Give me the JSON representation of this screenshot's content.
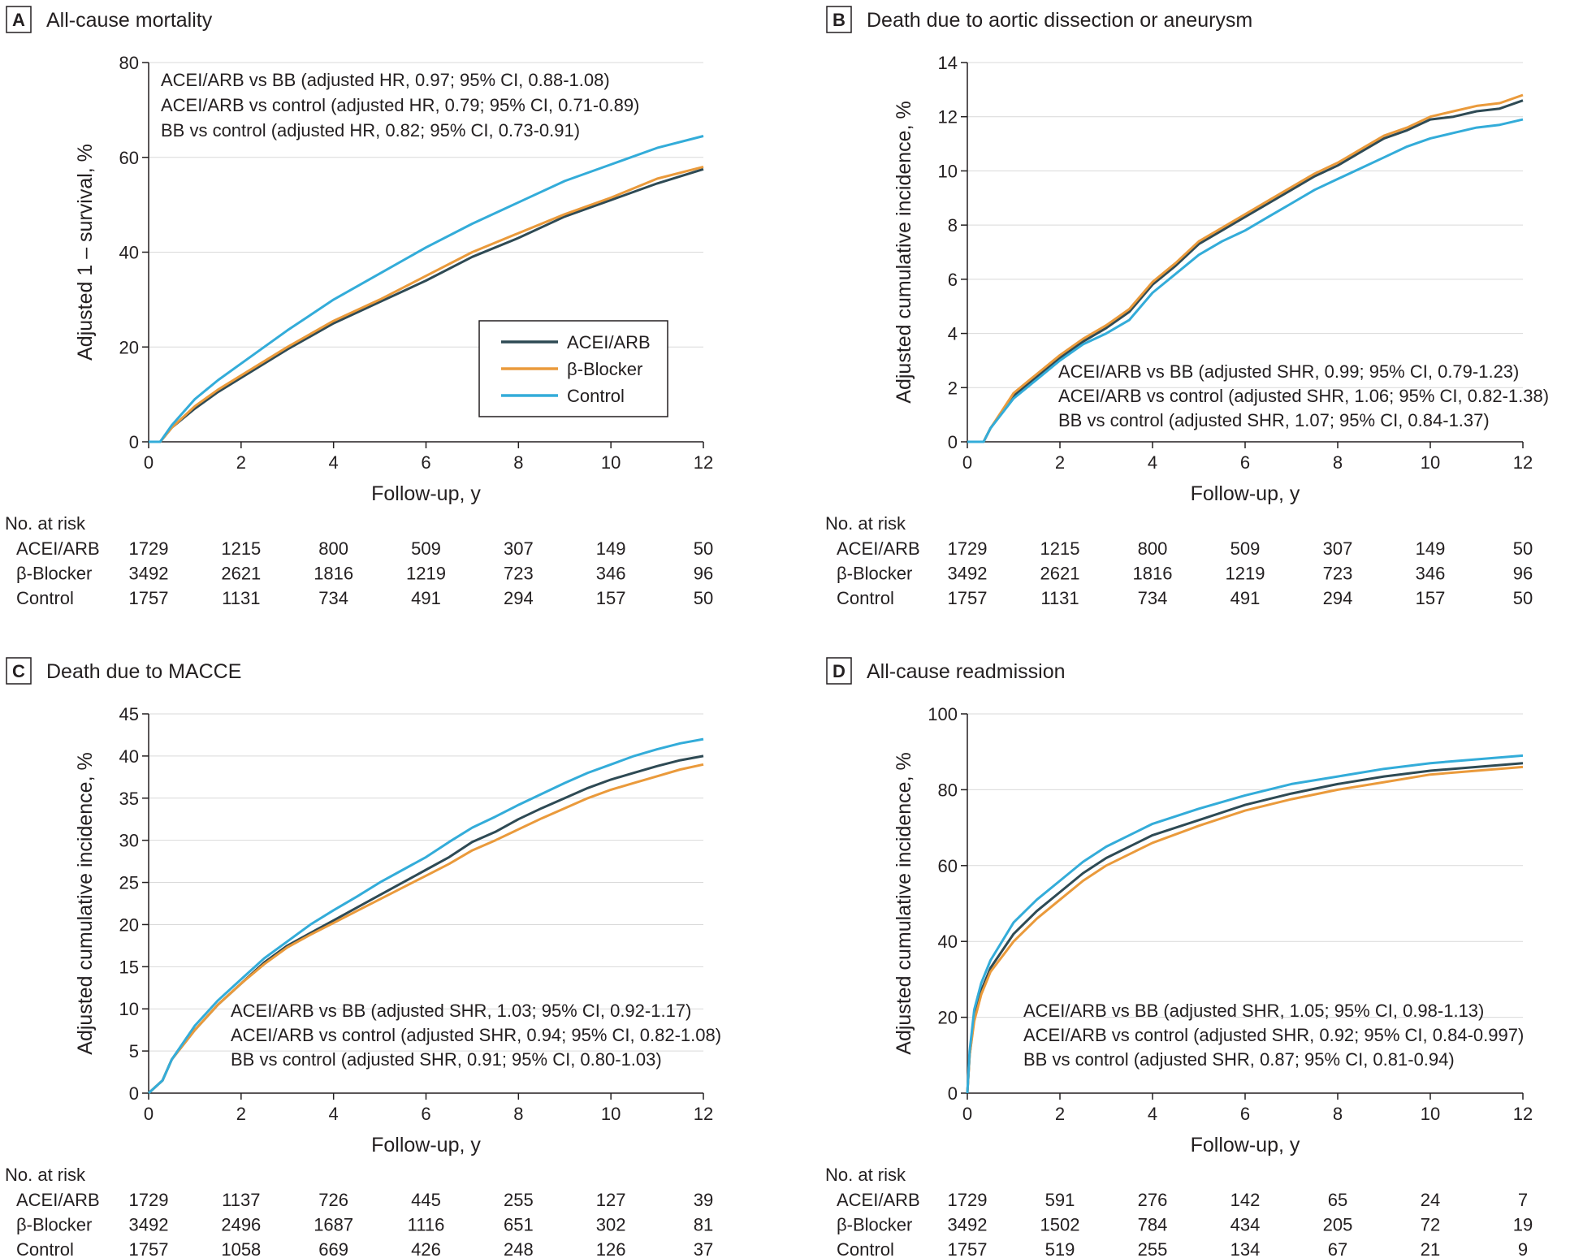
{
  "legend": {
    "items": [
      {
        "label": "ACEI/ARB",
        "color": "#2e4a54"
      },
      {
        "label": "β-Blocker",
        "color": "#ea9a3b"
      },
      {
        "label": "Control",
        "color": "#33acd9"
      }
    ]
  },
  "risk_header": "No. at risk",
  "chart_data": [
    {
      "panel": "A",
      "title": "All-cause mortality",
      "type": "line",
      "xlabel": "Follow-up, y",
      "ylabel": "Adjusted 1 – survival, %",
      "xlim": [
        0,
        12
      ],
      "ylim": [
        0,
        80
      ],
      "xticks": [
        0,
        2,
        4,
        6,
        8,
        10,
        12
      ],
      "yticks": [
        0,
        20,
        40,
        60,
        80
      ],
      "legend_position": "center-right",
      "annotations": [
        "ACEI/ARB vs BB (adjusted HR, 0.97; 95% CI, 0.88-1.08)",
        "ACEI/ARB vs control (adjusted HR, 0.79; 95% CI, 0.71-0.89)",
        "BB vs control (adjusted HR, 0.82; 95% CI, 0.73-0.91)"
      ],
      "series": [
        {
          "name": "ACEI/ARB",
          "color": "#2e4a54",
          "x": [
            0,
            0.25,
            0.5,
            1,
            1.5,
            2,
            3,
            4,
            5,
            6,
            7,
            8,
            9,
            10,
            11,
            12
          ],
          "y": [
            0,
            0,
            3,
            7,
            10.5,
            13.5,
            19.5,
            25,
            29.5,
            34,
            39,
            43,
            47.5,
            51,
            54.5,
            57.5
          ]
        },
        {
          "name": "β-Blocker",
          "color": "#ea9a3b",
          "x": [
            0,
            0.25,
            0.5,
            1,
            1.5,
            2,
            3,
            4,
            5,
            6,
            7,
            8,
            9,
            10,
            11,
            12
          ],
          "y": [
            0,
            0,
            3,
            7.5,
            11,
            14,
            20,
            25.5,
            30,
            35,
            40,
            44,
            48,
            51.5,
            55.5,
            58
          ]
        },
        {
          "name": "Control",
          "color": "#33acd9",
          "x": [
            0,
            0.25,
            0.5,
            1,
            1.5,
            2,
            3,
            4,
            5,
            6,
            7,
            8,
            9,
            10,
            11,
            12
          ],
          "y": [
            0,
            0,
            3.5,
            9,
            13,
            16.5,
            23.5,
            30,
            35.5,
            41,
            46,
            50.5,
            55,
            58.5,
            62,
            64.5
          ]
        }
      ],
      "risk_rows": [
        {
          "label": "ACEI/ARB",
          "values": [
            1729,
            1215,
            800,
            509,
            307,
            149,
            50
          ]
        },
        {
          "label": "β-Blocker",
          "values": [
            3492,
            2621,
            1816,
            1219,
            723,
            346,
            96
          ]
        },
        {
          "label": "Control",
          "values": [
            1757,
            1131,
            734,
            491,
            294,
            157,
            50
          ]
        }
      ]
    },
    {
      "panel": "B",
      "title": "Death due to aortic dissection or aneurysm",
      "type": "line",
      "xlabel": "Follow-up, y",
      "ylabel": "Adjusted cumulative incidence, %",
      "xlim": [
        0,
        12
      ],
      "ylim": [
        0,
        14
      ],
      "xticks": [
        0,
        2,
        4,
        6,
        8,
        10,
        12
      ],
      "yticks": [
        0,
        2,
        4,
        6,
        8,
        10,
        12,
        14
      ],
      "annotations": [
        "ACEI/ARB vs BB (adjusted SHR, 0.99; 95% CI, 0.79-1.23)",
        "ACEI/ARB vs control (adjusted SHR, 1.06; 95% CI, 0.82-1.38)",
        "BB vs control (adjusted SHR, 1.07; 95% CI, 0.84-1.37)"
      ],
      "series": [
        {
          "name": "ACEI/ARB",
          "color": "#2e4a54",
          "x": [
            0,
            0.35,
            0.5,
            1,
            1.5,
            2,
            2.5,
            3,
            3.5,
            4,
            4.5,
            5,
            5.5,
            6,
            6.5,
            7,
            7.5,
            8,
            8.5,
            9,
            9.5,
            10,
            10.5,
            11,
            11.5,
            12
          ],
          "y": [
            0,
            0,
            0.5,
            1.7,
            2.4,
            3.1,
            3.7,
            4.2,
            4.8,
            5.8,
            6.5,
            7.3,
            7.8,
            8.3,
            8.8,
            9.3,
            9.8,
            10.2,
            10.7,
            11.2,
            11.5,
            11.9,
            12.0,
            12.2,
            12.3,
            12.6
          ]
        },
        {
          "name": "β-Blocker",
          "color": "#ea9a3b",
          "x": [
            0,
            0.35,
            0.5,
            1,
            1.5,
            2,
            2.5,
            3,
            3.5,
            4,
            4.5,
            5,
            5.5,
            6,
            6.5,
            7,
            7.5,
            8,
            8.5,
            9,
            9.5,
            10,
            10.5,
            11,
            11.5,
            12
          ],
          "y": [
            0,
            0,
            0.5,
            1.8,
            2.5,
            3.2,
            3.8,
            4.3,
            4.9,
            5.9,
            6.6,
            7.4,
            7.9,
            8.4,
            8.9,
            9.4,
            9.9,
            10.3,
            10.8,
            11.3,
            11.6,
            12.0,
            12.2,
            12.4,
            12.5,
            12.8
          ]
        },
        {
          "name": "Control",
          "color": "#33acd9",
          "x": [
            0,
            0.35,
            0.5,
            1,
            1.5,
            2,
            2.5,
            3,
            3.5,
            4,
            4.5,
            5,
            5.5,
            6,
            6.5,
            7,
            7.5,
            8,
            8.5,
            9,
            9.5,
            10,
            10.5,
            11,
            11.5,
            12
          ],
          "y": [
            0,
            0,
            0.5,
            1.6,
            2.3,
            3.0,
            3.6,
            4.0,
            4.5,
            5.5,
            6.2,
            6.9,
            7.4,
            7.8,
            8.3,
            8.8,
            9.3,
            9.7,
            10.1,
            10.5,
            10.9,
            11.2,
            11.4,
            11.6,
            11.7,
            11.9
          ]
        }
      ],
      "risk_rows": [
        {
          "label": "ACEI/ARB",
          "values": [
            1729,
            1215,
            800,
            509,
            307,
            149,
            50
          ]
        },
        {
          "label": "β-Blocker",
          "values": [
            3492,
            2621,
            1816,
            1219,
            723,
            346,
            96
          ]
        },
        {
          "label": "Control",
          "values": [
            1757,
            1131,
            734,
            491,
            294,
            157,
            50
          ]
        }
      ]
    },
    {
      "panel": "C",
      "title": "Death due to MACCE",
      "type": "line",
      "xlabel": "Follow-up, y",
      "ylabel": "Adjusted cumulative incidence, %",
      "xlim": [
        0,
        12
      ],
      "ylim": [
        0,
        45
      ],
      "xticks": [
        0,
        2,
        4,
        6,
        8,
        10,
        12
      ],
      "yticks": [
        0,
        5,
        10,
        15,
        20,
        25,
        30,
        35,
        40,
        45
      ],
      "annotations": [
        "ACEI/ARB vs BB (adjusted SHR, 1.03; 95% CI, 0.92-1.17)",
        "ACEI/ARB vs control (adjusted SHR, 0.94; 95% CI, 0.82-1.08)",
        "BB vs control (adjusted SHR, 0.91; 95% CI, 0.80-1.03)"
      ],
      "series": [
        {
          "name": "ACEI/ARB",
          "color": "#2e4a54",
          "x": [
            0,
            0.3,
            0.5,
            1,
            1.5,
            2,
            2.5,
            3,
            3.5,
            4,
            4.5,
            5,
            5.5,
            6,
            6.5,
            7,
            7.5,
            8,
            8.5,
            9,
            9.5,
            10,
            10.5,
            11,
            11.5,
            12
          ],
          "y": [
            0,
            1.5,
            4,
            7.5,
            10.5,
            13,
            15.5,
            17.5,
            19,
            20.5,
            22,
            23.5,
            25,
            26.5,
            28,
            29.8,
            31,
            32.5,
            33.8,
            35,
            36.2,
            37.2,
            38,
            38.8,
            39.5,
            40
          ]
        },
        {
          "name": "β-Blocker",
          "color": "#ea9a3b",
          "x": [
            0,
            0.3,
            0.5,
            1,
            1.5,
            2,
            2.5,
            3,
            3.5,
            4,
            4.5,
            5,
            5.5,
            6,
            6.5,
            7,
            7.5,
            8,
            8.5,
            9,
            9.5,
            10,
            10.5,
            11,
            11.5,
            12
          ],
          "y": [
            0,
            1.5,
            4,
            7.5,
            10.5,
            13,
            15.3,
            17.3,
            18.8,
            20.2,
            21.6,
            23,
            24.4,
            25.8,
            27.2,
            28.8,
            30,
            31.3,
            32.6,
            33.8,
            35,
            36,
            36.8,
            37.6,
            38.4,
            39
          ]
        },
        {
          "name": "Control",
          "color": "#33acd9",
          "x": [
            0,
            0.3,
            0.5,
            1,
            1.5,
            2,
            2.5,
            3,
            3.5,
            4,
            4.5,
            5,
            5.5,
            6,
            6.5,
            7,
            7.5,
            8,
            8.5,
            9,
            9.5,
            10,
            10.5,
            11,
            11.5,
            12
          ],
          "y": [
            0,
            1.5,
            4,
            8,
            11,
            13.5,
            16,
            18,
            20,
            21.7,
            23.3,
            25,
            26.5,
            28,
            29.8,
            31.5,
            32.8,
            34.2,
            35.5,
            36.8,
            38,
            39,
            40,
            40.8,
            41.5,
            42
          ]
        }
      ],
      "risk_rows": [
        {
          "label": "ACEI/ARB",
          "values": [
            1729,
            1137,
            726,
            445,
            255,
            127,
            39
          ]
        },
        {
          "label": "β-Blocker",
          "values": [
            3492,
            2496,
            1687,
            1116,
            651,
            302,
            81
          ]
        },
        {
          "label": "Control",
          "values": [
            1757,
            1058,
            669,
            426,
            248,
            126,
            37
          ]
        }
      ]
    },
    {
      "panel": "D",
      "title": "All-cause readmission",
      "type": "line",
      "xlabel": "Follow-up, y",
      "ylabel": "Adjusted cumulative incidence, %",
      "xlim": [
        0,
        12
      ],
      "ylim": [
        0,
        100
      ],
      "xticks": [
        0,
        2,
        4,
        6,
        8,
        10,
        12
      ],
      "yticks": [
        0,
        20,
        40,
        60,
        80,
        100
      ],
      "annotations": [
        "ACEI/ARB vs BB (adjusted SHR, 1.05; 95% CI, 0.98-1.13)",
        "ACEI/ARB vs control (adjusted SHR, 0.92; 95% CI, 0.84-0.997)",
        "BB vs control (adjusted SHR, 0.87; 95% CI, 0.81-0.94)"
      ],
      "series": [
        {
          "name": "ACEI/ARB",
          "color": "#2e4a54",
          "x": [
            0,
            0.05,
            0.15,
            0.3,
            0.5,
            1,
            1.5,
            2,
            2.5,
            3,
            4,
            5,
            6,
            7,
            8,
            9,
            10,
            11,
            12
          ],
          "y": [
            0,
            10,
            20,
            27,
            33,
            42,
            48,
            53,
            58,
            62,
            68,
            72,
            76,
            79,
            81.5,
            83.5,
            85,
            86,
            87
          ]
        },
        {
          "name": "β-Blocker",
          "color": "#ea9a3b",
          "x": [
            0,
            0.05,
            0.15,
            0.3,
            0.5,
            1,
            1.5,
            2,
            2.5,
            3,
            4,
            5,
            6,
            7,
            8,
            9,
            10,
            11,
            12
          ],
          "y": [
            0,
            10,
            19,
            26,
            32,
            40,
            46,
            51,
            56,
            60,
            66,
            70.5,
            74.5,
            77.5,
            80,
            82,
            84,
            85,
            86
          ]
        },
        {
          "name": "Control",
          "color": "#33acd9",
          "x": [
            0,
            0.05,
            0.15,
            0.3,
            0.5,
            1,
            1.5,
            2,
            2.5,
            3,
            4,
            5,
            6,
            7,
            8,
            9,
            10,
            11,
            12
          ],
          "y": [
            0,
            11,
            22,
            29,
            35,
            45,
            51,
            56,
            61,
            65,
            71,
            75,
            78.5,
            81.5,
            83.5,
            85.5,
            87,
            88,
            89
          ]
        }
      ],
      "risk_rows": [
        {
          "label": "ACEI/ARB",
          "values": [
            1729,
            591,
            276,
            142,
            65,
            24,
            7
          ]
        },
        {
          "label": "β-Blocker",
          "values": [
            3492,
            1502,
            784,
            434,
            205,
            72,
            19
          ]
        },
        {
          "label": "Control",
          "values": [
            1757,
            519,
            255,
            134,
            67,
            21,
            9
          ]
        }
      ]
    }
  ]
}
